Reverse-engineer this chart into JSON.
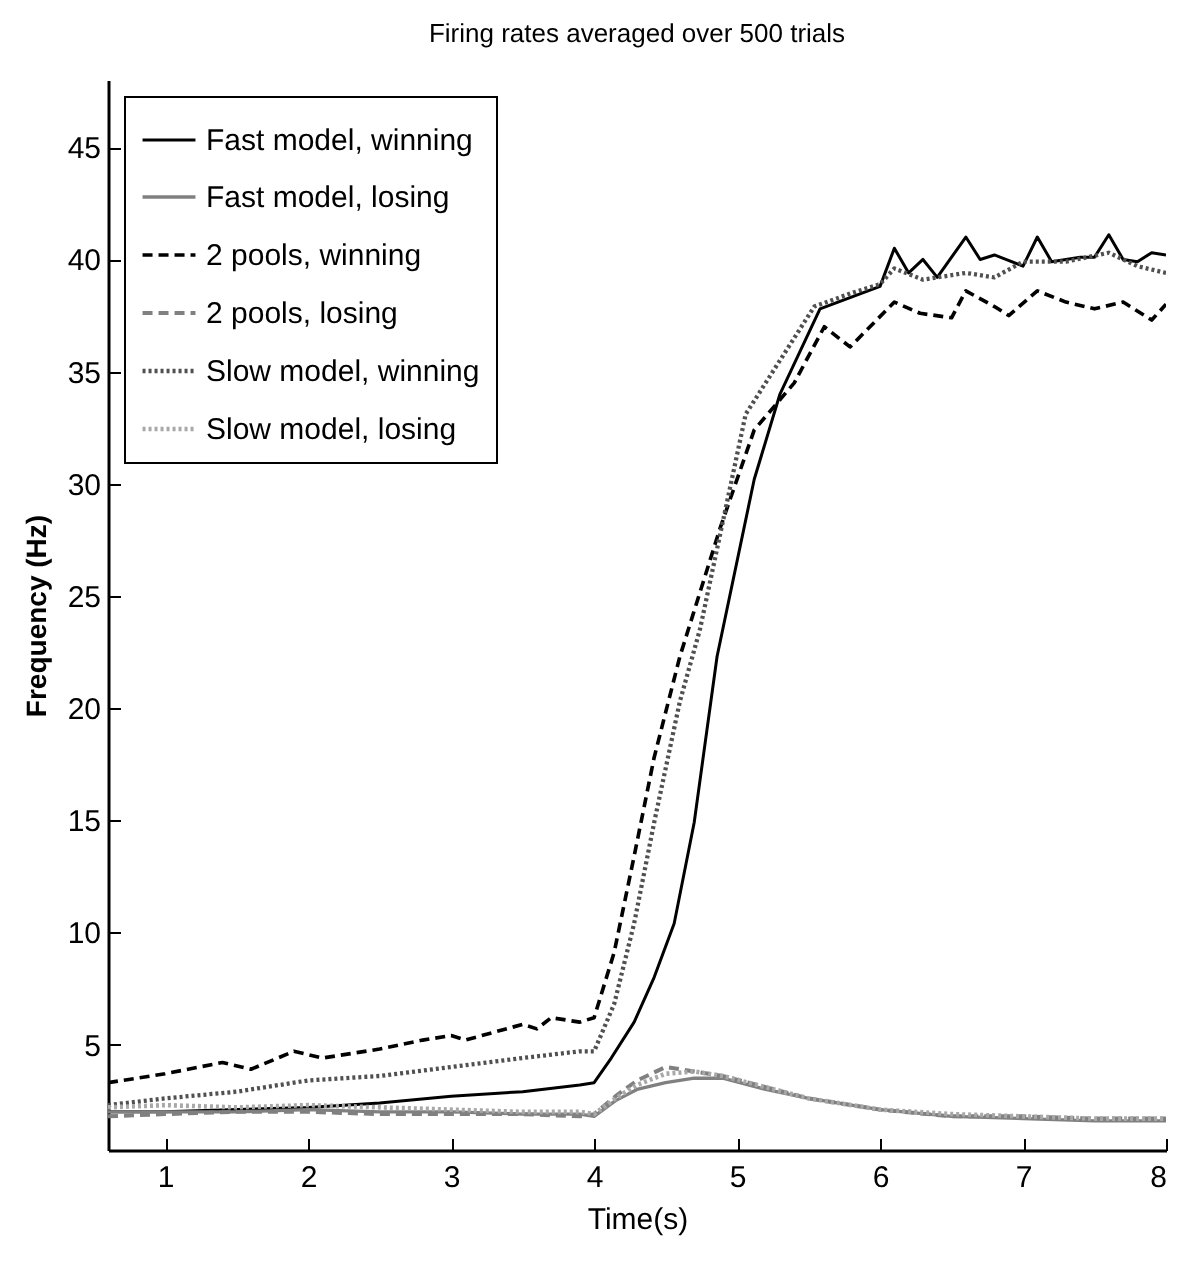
{
  "chart_data": {
    "type": "line",
    "title": "Firing rates averaged over 500 trials",
    "xlabel": "Time(s)",
    "ylabel": "Frequency (Hz)",
    "xlim": [
      0.6,
      8
    ],
    "ylim": [
      0.3,
      48
    ],
    "xticks": [
      1,
      2,
      3,
      4,
      5,
      6,
      7,
      8
    ],
    "yticks": [
      5,
      10,
      15,
      20,
      25,
      30,
      35,
      40,
      45
    ],
    "grid": false,
    "legend": "top left",
    "series": [
      {
        "name": "Fast model, winning",
        "color": "#000000",
        "line_style": "solid",
        "x": [
          0.6,
          1,
          1.5,
          2,
          2.5,
          3,
          3.5,
          3.9,
          4.0,
          4.12,
          4.28,
          4.42,
          4.56,
          4.7,
          4.86,
          5.12,
          5.3,
          5.58,
          6.0,
          6.1,
          6.2,
          6.3,
          6.4,
          6.6,
          6.7,
          6.8,
          7.0,
          7.1,
          7.2,
          7.4,
          7.5,
          7.6,
          7.7,
          7.8,
          7.9,
          8.0
        ],
        "values": [
          2.0,
          2.0,
          2.1,
          2.2,
          2.4,
          2.7,
          2.9,
          3.2,
          3.3,
          4.4,
          6.0,
          8.0,
          10.4,
          14.9,
          22.3,
          30.2,
          34.0,
          37.8,
          38.8,
          40.5,
          39.4,
          40.0,
          39.2,
          41.0,
          40.0,
          40.2,
          39.7,
          41.0,
          39.9,
          40.1,
          40.1,
          41.1,
          40.0,
          39.9,
          40.3,
          40.2
        ]
      },
      {
        "name": "Fast model, losing",
        "color": "#808080",
        "line_style": "solid",
        "x": [
          0.6,
          1,
          1.5,
          2,
          2.5,
          3,
          3.5,
          3.9,
          4.0,
          4.15,
          4.3,
          4.5,
          4.7,
          4.9,
          5.2,
          5.5,
          6.0,
          6.5,
          7,
          7.5,
          8
        ],
        "values": [
          2.0,
          2.0,
          2.0,
          2.1,
          2.0,
          2.0,
          1.9,
          1.9,
          1.8,
          2.5,
          3.0,
          3.3,
          3.5,
          3.5,
          3.0,
          2.6,
          2.1,
          1.8,
          1.7,
          1.6,
          1.6
        ]
      },
      {
        "name": "2 pools, winning",
        "color": "#000000",
        "line_style": "dashed",
        "x": [
          0.6,
          1,
          1.4,
          1.6,
          1.9,
          2.1,
          2.5,
          2.8,
          3.0,
          3.1,
          3.5,
          3.6,
          3.7,
          3.9,
          4.0,
          4.14,
          4.28,
          4.42,
          4.6,
          4.88,
          5.12,
          5.4,
          5.61,
          5.79,
          6.1,
          6.28,
          6.5,
          6.6,
          6.8,
          6.9,
          7.1,
          7.3,
          7.5,
          7.7,
          7.9,
          8.0
        ],
        "values": [
          3.3,
          3.7,
          4.2,
          3.9,
          4.7,
          4.4,
          4.8,
          5.2,
          5.4,
          5.2,
          5.9,
          5.7,
          6.2,
          6.0,
          6.2,
          9.1,
          13.4,
          17.8,
          22.3,
          28.0,
          32.4,
          34.5,
          37.0,
          36.1,
          38.1,
          37.6,
          37.4,
          38.6,
          37.9,
          37.5,
          38.6,
          38.1,
          37.8,
          38.1,
          37.3,
          38.0
        ]
      },
      {
        "name": "2 pools, losing",
        "color": "#808080",
        "line_style": "dashed",
        "x": [
          0.6,
          1,
          1.5,
          2,
          2.5,
          3,
          3.5,
          3.9,
          4.0,
          4.15,
          4.3,
          4.5,
          4.7,
          4.9,
          5.2,
          5.5,
          6.0,
          6.5,
          7,
          7.5,
          8
        ],
        "values": [
          1.8,
          1.9,
          2.0,
          2.0,
          1.9,
          1.9,
          1.9,
          1.8,
          1.9,
          2.7,
          3.4,
          4.0,
          3.8,
          3.6,
          3.1,
          2.6,
          2.1,
          1.8,
          1.8,
          1.7,
          1.7
        ]
      },
      {
        "name": "Slow model, winning",
        "color": "#505050",
        "line_style": "dotted",
        "x": [
          0.6,
          1,
          1.5,
          2,
          2.5,
          3,
          3.5,
          3.9,
          4.0,
          4.14,
          4.28,
          4.42,
          4.6,
          4.74,
          5.06,
          5.54,
          5.8,
          6.0,
          6.1,
          6.3,
          6.6,
          6.8,
          7.0,
          7.3,
          7.6,
          7.8,
          8.0
        ],
        "values": [
          2.3,
          2.6,
          2.9,
          3.4,
          3.6,
          4.0,
          4.4,
          4.7,
          4.7,
          6.8,
          10.4,
          14.9,
          20.3,
          23.5,
          33.1,
          37.9,
          38.5,
          38.9,
          39.6,
          39.1,
          39.4,
          39.2,
          39.9,
          39.9,
          40.3,
          39.7,
          39.4
        ]
      },
      {
        "name": "Slow model, losing",
        "color": "#a8a8a8",
        "line_style": "dotted",
        "x": [
          0.6,
          1,
          1.5,
          2,
          2.5,
          3,
          3.5,
          3.9,
          4.0,
          4.15,
          4.3,
          4.5,
          4.7,
          4.9,
          5.2,
          5.5,
          6.0,
          6.5,
          7,
          7.5,
          8
        ],
        "values": [
          2.2,
          2.3,
          2.2,
          2.3,
          2.2,
          2.1,
          2.0,
          2.0,
          1.9,
          2.6,
          3.2,
          3.7,
          3.8,
          3.6,
          3.1,
          2.6,
          2.1,
          1.9,
          1.8,
          1.7,
          1.7
        ]
      }
    ]
  }
}
